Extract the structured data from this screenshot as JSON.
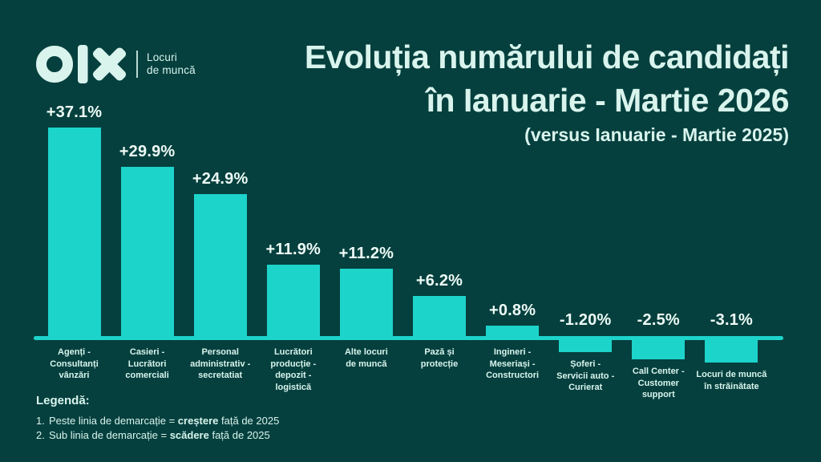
{
  "brand": {
    "name": "olx",
    "tagline_line1": "Locuri",
    "tagline_line2": "de muncă"
  },
  "header": {
    "title_line1": "Evoluția numărului de candidați",
    "title_line2": "în Ianuarie - Martie 2026",
    "subtitle": "(versus Ianuarie - Martie 2025)"
  },
  "chart_data": {
    "type": "bar",
    "title": "Evoluția numărului de candidați în Ianuarie - Martie 2026",
    "subtitle": "(versus Ianuarie - Martie 2025)",
    "unit": "%",
    "baseline_value": 0,
    "grid": false,
    "legend_position": "bottom-left",
    "categories": [
      "Agenți - Consultanți vânzări",
      "Casieri - Lucrători comerciali",
      "Personal administrativ - secretatiat",
      "Lucrători producție - depozit - logistică",
      "Alte locuri de muncă",
      "Pază și protecție",
      "Ingineri - Meseriași - Constructori",
      "Șoferi - Servicii auto - Curierat",
      "Call Center - Customer support",
      "Locuri de muncă în străinătate"
    ],
    "category_lines": [
      [
        "Agenți -",
        "Consultanți",
        "vânzări"
      ],
      [
        "Casieri -",
        "Lucrători",
        "comerciali"
      ],
      [
        "Personal",
        "administrativ -",
        "secretatiat"
      ],
      [
        "Lucrători",
        "producție -",
        "depozit -",
        "logistică"
      ],
      [
        "Alte locuri",
        "de muncă"
      ],
      [
        "Pază și",
        "protecție"
      ],
      [
        "Ingineri -",
        "Meseriași -",
        "Constructori"
      ],
      [
        "Șoferi -",
        "Servicii auto -",
        "Curierat"
      ],
      [
        "Call Center -",
        "Customer",
        "support"
      ],
      [
        "Locuri de muncă",
        "în străinătate"
      ]
    ],
    "values": [
      37.1,
      29.9,
      24.9,
      11.9,
      11.2,
      6.2,
      0.8,
      -1.2,
      -2.5,
      -3.1
    ],
    "value_labels": [
      "+37.1%",
      "+29.9%",
      "+24.9%",
      "+11.9%",
      "+11.2%",
      "+6.2%",
      "+0.8%",
      "-1.20%",
      "-2.5%",
      "-3.1%"
    ],
    "colors": {
      "bar": "#1dd4cb",
      "background": "#05403e",
      "text": "#d9f4ed",
      "value_label": "#edfaf5"
    }
  },
  "legend": {
    "heading": "Legendă:",
    "items": [
      {
        "number": "1.",
        "pre": "Peste linia de demarcație = ",
        "bold": "creștere",
        "post": " față de 2025"
      },
      {
        "number": "2.",
        "pre": "Sub linia de demarcație = ",
        "bold": "scădere",
        "post": " față de 2025"
      }
    ]
  }
}
